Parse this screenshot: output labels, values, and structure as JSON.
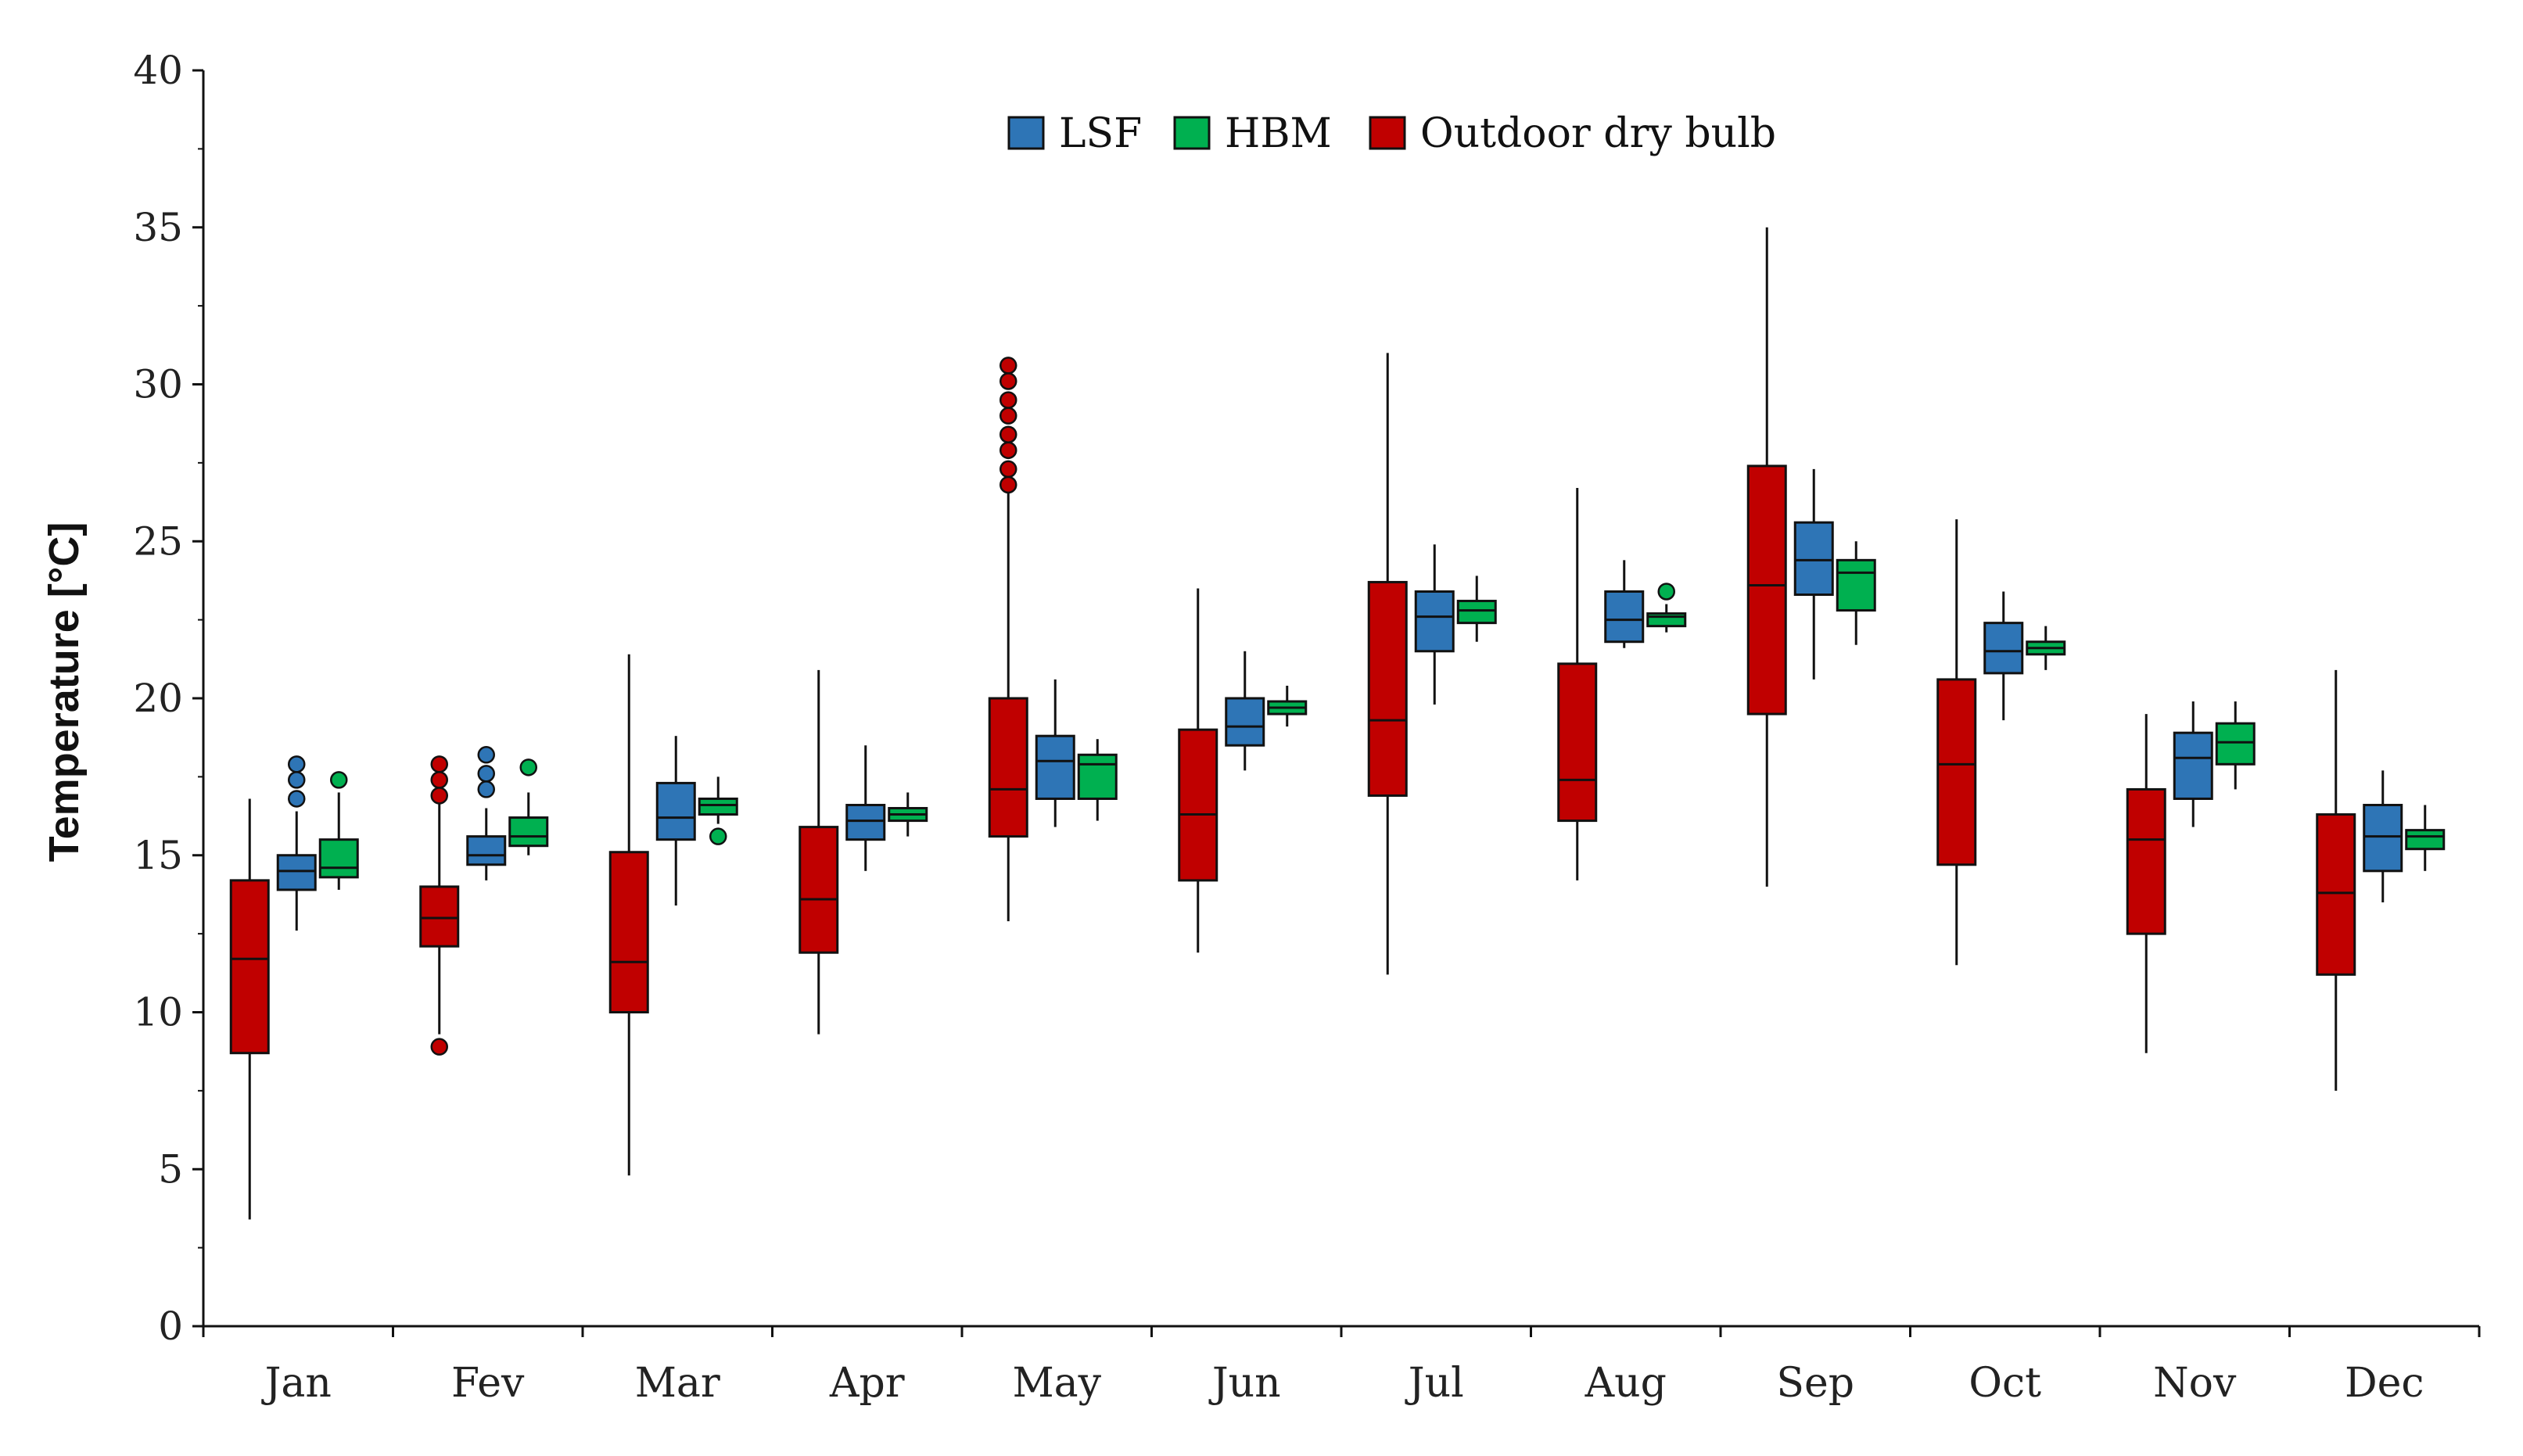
{
  "chart_data": {
    "type": "boxplot",
    "title": "",
    "xlabel": "",
    "ylabel": "Temperature [°C]",
    "ylim": [
      0,
      40
    ],
    "yticks": [
      0,
      5,
      10,
      15,
      20,
      25,
      30,
      35,
      40
    ],
    "categories": [
      "Jan",
      "Fev",
      "Mar",
      "Apr",
      "May",
      "Jun",
      "Jul",
      "Aug",
      "Sep",
      "Oct",
      "Nov",
      "Dec"
    ],
    "legend": {
      "position": "top-center",
      "order": [
        "LSF",
        "HBM",
        "Outdoor dry bulb"
      ]
    },
    "series": [
      {
        "name": "Outdoor dry bulb",
        "color": "#c00000",
        "boxes": [
          {
            "min": 3.4,
            "q1": 8.7,
            "median": 11.7,
            "q3": 14.2,
            "max": 16.8,
            "outliers": []
          },
          {
            "min": 9.3,
            "q1": 12.1,
            "median": 13.0,
            "q3": 14.0,
            "max": 16.9,
            "outliers": [
              17.9,
              17.4,
              16.9,
              8.9
            ]
          },
          {
            "min": 4.8,
            "q1": 10.0,
            "median": 11.6,
            "q3": 15.1,
            "max": 21.4,
            "outliers": []
          },
          {
            "min": 9.3,
            "q1": 11.9,
            "median": 13.6,
            "q3": 15.9,
            "max": 20.9,
            "outliers": []
          },
          {
            "min": 12.9,
            "q1": 15.6,
            "median": 17.1,
            "q3": 20.0,
            "max": 26.7,
            "outliers": [
              30.6,
              30.1,
              29.5,
              29.0,
              28.4,
              27.9,
              27.3,
              26.8
            ]
          },
          {
            "min": 11.9,
            "q1": 14.2,
            "median": 16.3,
            "q3": 19.0,
            "max": 23.5,
            "outliers": []
          },
          {
            "min": 11.2,
            "q1": 16.9,
            "median": 19.3,
            "q3": 23.7,
            "max": 31.0,
            "outliers": []
          },
          {
            "min": 14.2,
            "q1": 16.1,
            "median": 17.4,
            "q3": 21.1,
            "max": 26.7,
            "outliers": []
          },
          {
            "min": 14.0,
            "q1": 19.5,
            "median": 23.6,
            "q3": 27.4,
            "max": 35.0,
            "outliers": []
          },
          {
            "min": 11.5,
            "q1": 14.7,
            "median": 17.9,
            "q3": 20.6,
            "max": 25.7,
            "outliers": []
          },
          {
            "min": 8.7,
            "q1": 12.5,
            "median": 15.5,
            "q3": 17.1,
            "max": 19.5,
            "outliers": []
          },
          {
            "min": 7.5,
            "q1": 11.2,
            "median": 13.8,
            "q3": 16.3,
            "max": 20.9,
            "outliers": []
          }
        ]
      },
      {
        "name": "LSF",
        "color": "#2e75b6",
        "boxes": [
          {
            "min": 12.6,
            "q1": 13.9,
            "median": 14.5,
            "q3": 15.0,
            "max": 16.4,
            "outliers": [
              17.9,
              17.4,
              16.8
            ]
          },
          {
            "min": 14.2,
            "q1": 14.7,
            "median": 15.0,
            "q3": 15.6,
            "max": 16.5,
            "outliers": [
              18.2,
              17.6,
              17.1
            ]
          },
          {
            "min": 13.4,
            "q1": 15.5,
            "median": 16.2,
            "q3": 17.3,
            "max": 18.8,
            "outliers": []
          },
          {
            "min": 14.5,
            "q1": 15.5,
            "median": 16.1,
            "q3": 16.6,
            "max": 18.5,
            "outliers": []
          },
          {
            "min": 15.9,
            "q1": 16.8,
            "median": 18.0,
            "q3": 18.8,
            "max": 20.6,
            "outliers": []
          },
          {
            "min": 17.7,
            "q1": 18.5,
            "median": 19.1,
            "q3": 20.0,
            "max": 21.5,
            "outliers": []
          },
          {
            "min": 19.8,
            "q1": 21.5,
            "median": 22.6,
            "q3": 23.4,
            "max": 24.9,
            "outliers": []
          },
          {
            "min": 21.6,
            "q1": 21.8,
            "median": 22.5,
            "q3": 23.4,
            "max": 24.4,
            "outliers": []
          },
          {
            "min": 20.6,
            "q1": 23.3,
            "median": 24.4,
            "q3": 25.6,
            "max": 27.3,
            "outliers": []
          },
          {
            "min": 19.3,
            "q1": 20.8,
            "median": 21.5,
            "q3": 22.4,
            "max": 23.4,
            "outliers": []
          },
          {
            "min": 15.9,
            "q1": 16.8,
            "median": 18.1,
            "q3": 18.9,
            "max": 19.9,
            "outliers": []
          },
          {
            "min": 13.5,
            "q1": 14.5,
            "median": 15.6,
            "q3": 16.6,
            "max": 17.7,
            "outliers": []
          }
        ]
      },
      {
        "name": "HBM",
        "color": "#00b050",
        "boxes": [
          {
            "min": 13.9,
            "q1": 14.3,
            "median": 14.6,
            "q3": 15.5,
            "max": 17.0,
            "outliers": [
              17.4
            ]
          },
          {
            "min": 15.0,
            "q1": 15.3,
            "median": 15.6,
            "q3": 16.2,
            "max": 17.0,
            "outliers": [
              17.8
            ]
          },
          {
            "min": 16.0,
            "q1": 16.3,
            "median": 16.6,
            "q3": 16.8,
            "max": 17.5,
            "outliers": [
              15.6
            ]
          },
          {
            "min": 15.6,
            "q1": 16.1,
            "median": 16.3,
            "q3": 16.5,
            "max": 17.0,
            "outliers": []
          },
          {
            "min": 16.1,
            "q1": 16.8,
            "median": 17.9,
            "q3": 18.2,
            "max": 18.7,
            "outliers": []
          },
          {
            "min": 19.1,
            "q1": 19.5,
            "median": 19.7,
            "q3": 19.9,
            "max": 20.4,
            "outliers": []
          },
          {
            "min": 21.8,
            "q1": 22.4,
            "median": 22.8,
            "q3": 23.1,
            "max": 23.9,
            "outliers": []
          },
          {
            "min": 22.1,
            "q1": 22.3,
            "median": 22.6,
            "q3": 22.7,
            "max": 23.0,
            "outliers": [
              23.4
            ]
          },
          {
            "min": 21.7,
            "q1": 22.8,
            "median": 24.0,
            "q3": 24.4,
            "max": 25.0,
            "outliers": []
          },
          {
            "min": 20.9,
            "q1": 21.4,
            "median": 21.6,
            "q3": 21.8,
            "max": 22.3,
            "outliers": []
          },
          {
            "min": 17.1,
            "q1": 17.9,
            "median": 18.6,
            "q3": 19.2,
            "max": 19.9,
            "outliers": []
          },
          {
            "min": 14.5,
            "q1": 15.2,
            "median": 15.6,
            "q3": 15.8,
            "max": 16.6,
            "outliers": []
          }
        ]
      }
    ]
  }
}
